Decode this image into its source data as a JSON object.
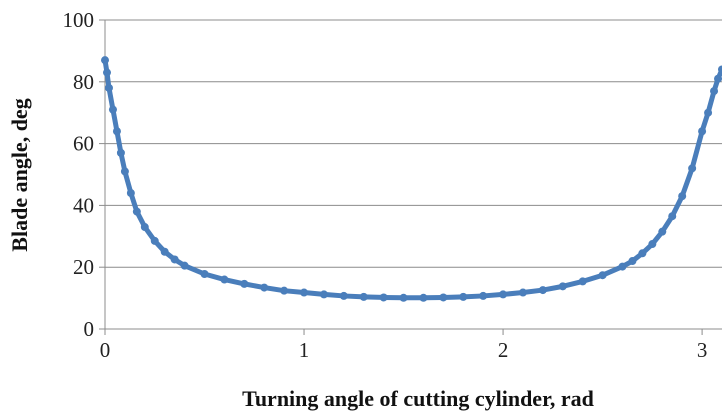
{
  "chart_data": {
    "type": "scatter",
    "title": "",
    "xlabel": "Turning angle of cutting cylinder, rad",
    "ylabel": "Blade angle, deg",
    "xlim": [
      0,
      3.1
    ],
    "ylim": [
      0,
      100
    ],
    "xticks": [
      0,
      1,
      2,
      3
    ],
    "yticks": [
      0,
      20,
      40,
      60,
      80,
      100
    ],
    "grid": {
      "horizontal": true,
      "vertical": false
    },
    "legend": "none",
    "series": [
      {
        "color": "#4a7ebb",
        "x": [
          0.0,
          0.01,
          0.02,
          0.04,
          0.06,
          0.08,
          0.1,
          0.13,
          0.16,
          0.2,
          0.25,
          0.3,
          0.35,
          0.4,
          0.5,
          0.6,
          0.7,
          0.8,
          0.9,
          1.0,
          1.1,
          1.2,
          1.3,
          1.4,
          1.5,
          1.6,
          1.7,
          1.8,
          1.9,
          2.0,
          2.1,
          2.2,
          2.3,
          2.4,
          2.5,
          2.6,
          2.65,
          2.7,
          2.75,
          2.8,
          2.85,
          2.9,
          2.95,
          3.0,
          3.03,
          3.06,
          3.08,
          3.1
        ],
        "y": [
          87,
          83,
          78,
          71,
          64,
          57,
          51,
          44,
          38,
          33,
          28.5,
          25,
          22.5,
          20.5,
          17.8,
          16,
          14.6,
          13.4,
          12.4,
          11.8,
          11.2,
          10.7,
          10.4,
          10.2,
          10.1,
          10.1,
          10.2,
          10.4,
          10.7,
          11.2,
          11.8,
          12.6,
          13.8,
          15.4,
          17.4,
          20.2,
          22,
          24.5,
          27.5,
          31.5,
          36.5,
          43,
          52,
          64,
          70,
          77,
          81,
          84
        ]
      }
    ]
  }
}
